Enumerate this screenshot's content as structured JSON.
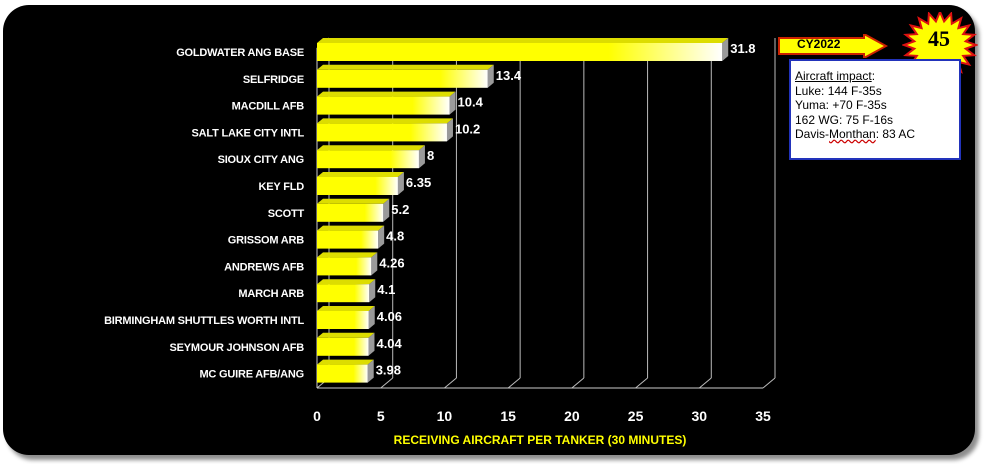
{
  "chart_data": {
    "type": "bar",
    "orientation": "horizontal",
    "title": "",
    "xlabel": "RECEIVING AIRCRAFT PER TANKER (30 MINUTES)",
    "ylabel": "",
    "xlim": [
      0,
      35
    ],
    "xticks": [
      0,
      5,
      10,
      15,
      20,
      25,
      30,
      35
    ],
    "grid": true,
    "categories": [
      "GOLDWATER ANG BASE",
      "SELFRIDGE",
      "MACDILL AFB",
      "SALT LAKE CITY INTL",
      "SIOUX CITY ANG",
      "KEY FLD",
      "SCOTT",
      "GRISSOM ARB",
      "ANDREWS AFB",
      "MARCH ARB",
      "BIRMINGHAM SHUTTLES WORTH INTL",
      "SEYMOUR JOHNSON AFB",
      "MC GUIRE AFB/ANG"
    ],
    "values": [
      31.8,
      13.4,
      10.4,
      10.2,
      8,
      6.35,
      5.2,
      4.8,
      4.26,
      4.1,
      4.06,
      4.04,
      3.98
    ],
    "value_labels": [
      "31.8",
      "13.4",
      "10.4",
      "10.2",
      "8",
      "6.35",
      "5.2",
      "4.8",
      "4.26",
      "4.1",
      "4.06",
      "4.04",
      "3.98"
    ],
    "colors": {
      "bar": "#ffff00",
      "background": "#000000",
      "text": "#ffffff",
      "axis_title": "#ffff00"
    }
  },
  "annotations": {
    "cy_label": "CY2022",
    "burst_number": "45",
    "impact_title": "Aircraft impact",
    "impact_lines": [
      "Luke:  144 F-35s",
      "Yuma: +70 F-35s",
      "162 WG: 75 F-16s"
    ],
    "impact_last_prefix": "Davis-",
    "impact_last_word": "Monthan",
    "impact_last_suffix": ": 83 AC"
  }
}
